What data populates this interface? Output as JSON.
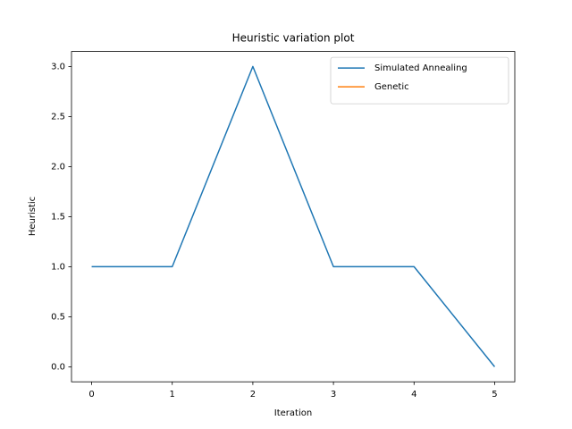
{
  "chart_data": {
    "type": "line",
    "title": "Heuristic variation plot",
    "xlabel": "Iteration",
    "ylabel": "Heuristic",
    "x": [
      0,
      1,
      2,
      3,
      4,
      5
    ],
    "series": [
      {
        "name": "Simulated Annealing",
        "color": "#1f77b4",
        "values": [
          1,
          1,
          3,
          1,
          1,
          0
        ]
      },
      {
        "name": "Genetic",
        "color": "#ff7f0e",
        "values": [
          null,
          null,
          null,
          null,
          null,
          null
        ]
      }
    ],
    "xlim": [
      -0.25,
      5.25
    ],
    "xticks": [
      0,
      1,
      2,
      3,
      4,
      5
    ],
    "ylim": [
      -0.15,
      3.15
    ],
    "yticks": [
      {
        "value": 0,
        "label": "0.0"
      },
      {
        "value": 0.5,
        "label": "0.5"
      },
      {
        "value": 1,
        "label": "1.0"
      },
      {
        "value": 1.5,
        "label": "1.5"
      },
      {
        "value": 2,
        "label": "2.0"
      },
      {
        "value": 2.5,
        "label": "2.5"
      },
      {
        "value": 3,
        "label": "3.0"
      }
    ],
    "legend": "upper right",
    "grid": false
  }
}
